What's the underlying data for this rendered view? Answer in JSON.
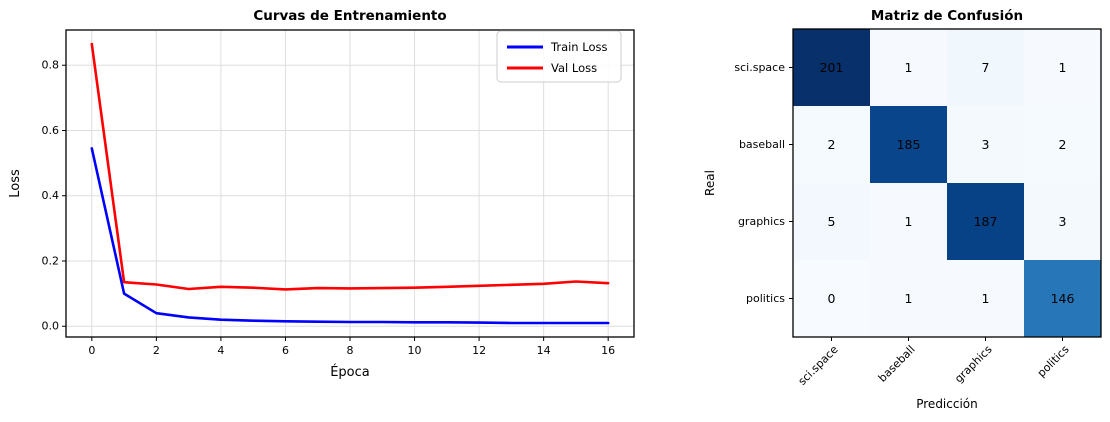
{
  "chart_data": [
    {
      "type": "line",
      "title": "Curvas de Entrenamiento",
      "xlabel": "Época",
      "ylabel": "Loss",
      "x": [
        0,
        1,
        2,
        3,
        4,
        5,
        6,
        7,
        8,
        9,
        10,
        11,
        12,
        13,
        14,
        15,
        16
      ],
      "series": [
        {
          "name": "Train Loss",
          "color": "#0000ff",
          "values": [
            0.545,
            0.1,
            0.04,
            0.027,
            0.02,
            0.017,
            0.015,
            0.014,
            0.013,
            0.013,
            0.012,
            0.012,
            0.011,
            0.01,
            0.01,
            0.01,
            0.01
          ]
        },
        {
          "name": "Val Loss",
          "color": "#ff0000",
          "values": [
            0.865,
            0.135,
            0.128,
            0.114,
            0.121,
            0.118,
            0.113,
            0.117,
            0.116,
            0.117,
            0.118,
            0.121,
            0.124,
            0.127,
            0.13,
            0.137,
            0.132
          ]
        }
      ],
      "xlim": [
        -0.8,
        16.8
      ],
      "ylim": [
        -0.033,
        0.908
      ],
      "xticks": [
        0,
        2,
        4,
        6,
        8,
        10,
        12,
        14,
        16
      ],
      "yticks": [
        0.0,
        0.2,
        0.4,
        0.6,
        0.8
      ],
      "grid": true,
      "legend_position": "upper right",
      "grid_color": "#dedede"
    },
    {
      "type": "heatmap",
      "title": "Matriz de Confusión",
      "xlabel": "Predicción",
      "ylabel": "Real",
      "categories": [
        "sci.space",
        "baseball",
        "graphics",
        "politics"
      ],
      "matrix": [
        [
          201,
          1,
          7,
          1
        ],
        [
          2,
          185,
          3,
          2
        ],
        [
          5,
          1,
          187,
          3
        ],
        [
          0,
          1,
          1,
          146
        ]
      ],
      "colormap": "Blues",
      "vmin": 0,
      "vmax": 201,
      "grid": false,
      "legend_position": "none"
    }
  ]
}
